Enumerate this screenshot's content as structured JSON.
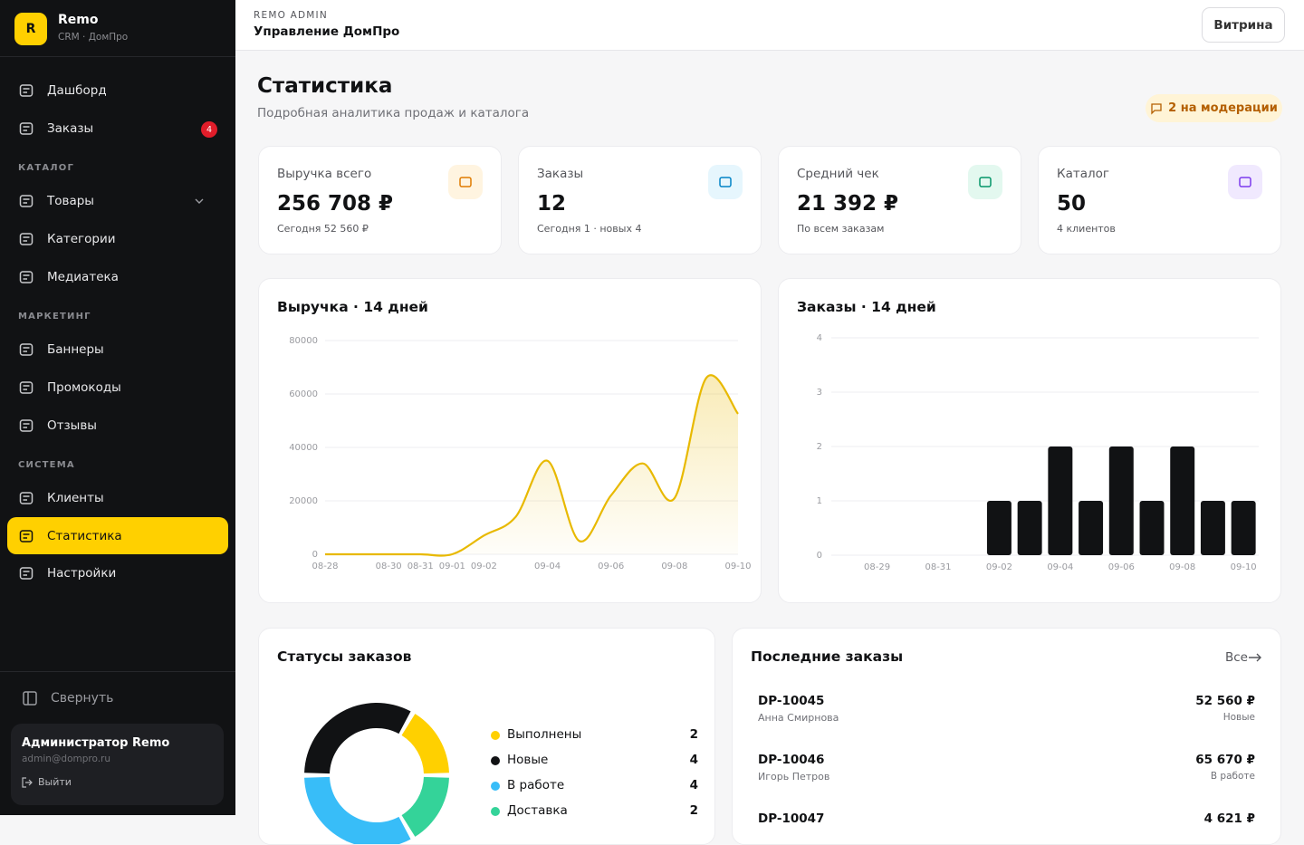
{
  "sidebar": {
    "logo": "R",
    "brand": "Remo",
    "sub": "CRM · ДомПро",
    "groups": [
      {
        "items": [
          {
            "label": "Дашборд"
          },
          {
            "label": "Заказы",
            "badge": 4
          }
        ]
      },
      {
        "section": "КАТАЛОГ",
        "items": [
          {
            "label": "Товары"
          },
          {
            "label": "Категории"
          },
          {
            "label": "Медиатека"
          }
        ]
      },
      {
        "section": "МАРКЕТИНГ",
        "items": [
          {
            "label": "Баннеры"
          },
          {
            "label": "Промокоды"
          },
          {
            "label": "Отзывы"
          }
        ]
      },
      {
        "section": "СИСТЕМА",
        "items": [
          {
            "label": "Клиенты"
          },
          {
            "label": "Статистика",
            "active": true
          },
          {
            "label": "Настройки"
          }
        ]
      }
    ],
    "collapse": "Свернуть",
    "user": {
      "name": "Администратор Remo",
      "email": "admin@dompro.ru",
      "logout": "Выйти"
    }
  },
  "header": {
    "kicker": "REMO ADMIN",
    "title": "Управление ДомПро",
    "button": "Витрина"
  },
  "page": {
    "title": "Статистика",
    "subtitle": "Подробная аналитика продаж и каталога",
    "badge": "2 на модерации"
  },
  "kpis": [
    {
      "label": "Выручка всего",
      "value": "256 708 ₽",
      "note": "Сегодня 52 560 ₽"
    },
    {
      "label": "Заказы",
      "value": "12",
      "note": "Сегодня 1 · новых 4"
    },
    {
      "label": "Средний чек",
      "value": "21 392 ₽",
      "note": "По всем заказам"
    },
    {
      "label": "Каталог",
      "value": "50",
      "note": "4 клиентов"
    }
  ],
  "revenue_chart": {
    "type": "line",
    "title": "Выручка · 14 дней",
    "color": "#e8b900",
    "categories": [
      "08-28",
      null,
      "08-30",
      "08-31",
      "09-01",
      "09-02",
      null,
      "09-04",
      null,
      "09-06",
      null,
      "09-08",
      null,
      "09-10"
    ],
    "values": [
      0,
      0,
      0,
      0,
      0,
      7000,
      14000,
      35000,
      5000,
      22000,
      34000,
      21000,
      66000,
      52560
    ],
    "ylim": [
      0,
      80000
    ],
    "yticks": [
      0,
      20000,
      40000,
      60000,
      80000
    ],
    "grid": true
  },
  "orders_chart": {
    "type": "bar",
    "title": "Заказы · 14 дней",
    "color": "#111214",
    "categories": [
      null,
      "08-29",
      null,
      "08-31",
      null,
      "09-02",
      null,
      "09-04",
      null,
      "09-06",
      null,
      "09-08",
      null,
      "09-10"
    ],
    "values": [
      0,
      0,
      0,
      0,
      0,
      1,
      1,
      2,
      1,
      2,
      1,
      2,
      1,
      1
    ],
    "ylim": [
      0,
      4
    ],
    "yticks": [
      0,
      1,
      2,
      3,
      4
    ],
    "grid": true
  },
  "status_chart": {
    "type": "donut",
    "title": "Статусы заказов",
    "categories": [
      "Выполнены",
      "Новые",
      "В работе",
      "Доставка"
    ],
    "values": [
      2,
      4,
      4,
      2
    ],
    "colors": [
      "#ffd000",
      "#111214",
      "#38bdf8",
      "#34d399"
    ]
  },
  "recent": {
    "title": "Последние заказы",
    "all": "Все",
    "rows": [
      {
        "id": "DP-10045",
        "customer": "Анна Смирнова",
        "amount": "52 560 ₽",
        "status": "Новые"
      },
      {
        "id": "DP-10046",
        "customer": "Игорь Петров",
        "amount": "65 670 ₽",
        "status": "В работе"
      },
      {
        "id": "DP-10047",
        "amount": "4 621 ₽"
      }
    ]
  }
}
